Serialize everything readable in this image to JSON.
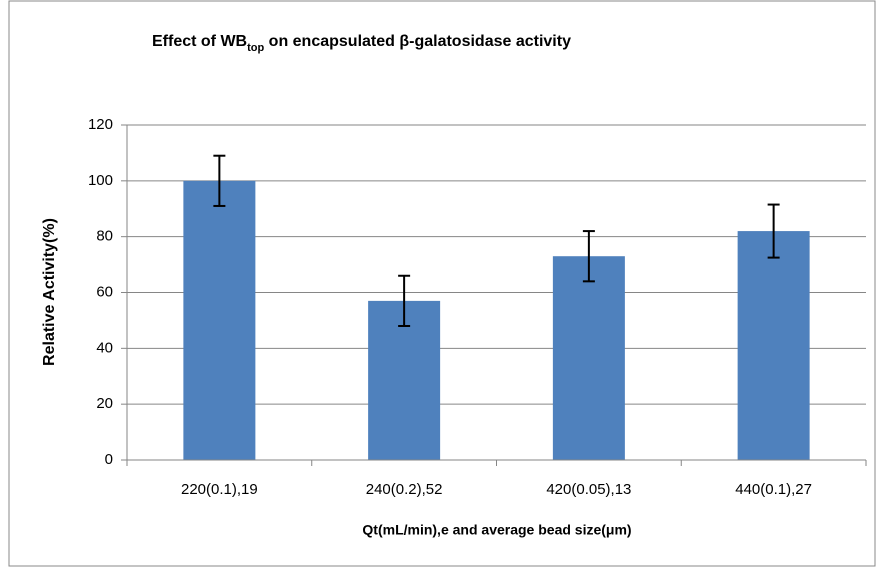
{
  "chart_data": {
    "type": "bar",
    "title": "Effect of WB",
    "title_subscript": "top",
    "title_rest": " on encapsulated β-galatosidase activity",
    "y_label": "Relative Activity(%)",
    "x_label": "Qt(mL/min),e and average bead size(μm)",
    "categories": [
      "220(0.1),19",
      "240(0.2),52",
      "420(0.05),13",
      "440(0.1),27"
    ],
    "values": [
      100,
      57,
      73,
      82
    ],
    "errors": [
      9,
      9,
      9,
      9.5
    ],
    "color": "#4f81bd",
    "ylim": [
      0,
      120
    ],
    "yticks": [
      0,
      20,
      40,
      60,
      80,
      100,
      120
    ],
    "grid": true
  }
}
